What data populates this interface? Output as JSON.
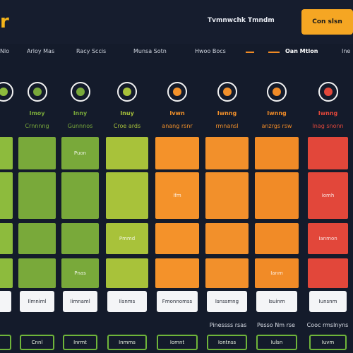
{
  "header": {
    "logo": "r",
    "link": "Tvmnwchk Tmndm",
    "button": "Con slsn"
  },
  "tabs": [
    {
      "label": "Nlo"
    },
    {
      "label": "Arloy Mas"
    },
    {
      "label": "Racy Sccis"
    },
    {
      "label": "Munsa Sotn"
    },
    {
      "label": "Hwoo Bocs"
    },
    {
      "label": "Oan Mtlon",
      "active": true
    },
    {
      "label": "Ine"
    }
  ],
  "columns": [
    {
      "level": "",
      "category": "",
      "icon": "circle-icon",
      "color": "#8dbb3d"
    },
    {
      "level": "Imoy",
      "category": "Crnnnng",
      "icon": "circle-icon",
      "color": "#79a93a"
    },
    {
      "level": "lnny",
      "category": "Gunnnos",
      "icon": "letter-icon",
      "color": "#79a93a"
    },
    {
      "level": "Inuy",
      "category": "Croe ards",
      "icon": "leaf-icon",
      "color": "#a8c23a"
    },
    {
      "level": "Ivwn",
      "category": "anang rsnr",
      "icon": "sun-icon",
      "color": "#f4922a"
    },
    {
      "level": "Iwnng",
      "category": "rmnansl",
      "icon": "swirl-icon",
      "color": "#f2902b"
    },
    {
      "level": "Iwnng",
      "category": "anzrgs rsw",
      "icon": "sun-icon",
      "color": "#f18b27"
    },
    {
      "level": "Iwnng",
      "category": "Inag snonn",
      "icon": "alert-icon",
      "color": "#e2473a"
    }
  ],
  "grid_rows": [
    [
      "",
      "",
      "Puon",
      "",
      "",
      "",
      "",
      ""
    ],
    [
      "",
      "",
      "",
      "",
      "Ifm",
      "",
      "",
      "Iomh"
    ],
    [
      "",
      "",
      "",
      "Pmmd",
      "",
      "",
      "",
      "Ianmon"
    ],
    [
      "",
      "",
      "Pnas",
      "",
      "",
      "",
      "Ianm",
      ""
    ]
  ],
  "chips": [
    "",
    "Ilmniml",
    "Iimnaml",
    "Iisnms",
    "Fmonnomss",
    "Isnssmng",
    "Isuinm",
    "Iunsnm"
  ],
  "footer_texts": [
    "Pinessss rsas",
    "Pesso Nm rse",
    "Cooc rmslnyns"
  ],
  "footer_buttons": [
    "",
    "Cnnl",
    "Inrmt",
    "Inmms",
    "Iomnt",
    "Iontnss",
    "Iulsn",
    "Iuvm"
  ]
}
